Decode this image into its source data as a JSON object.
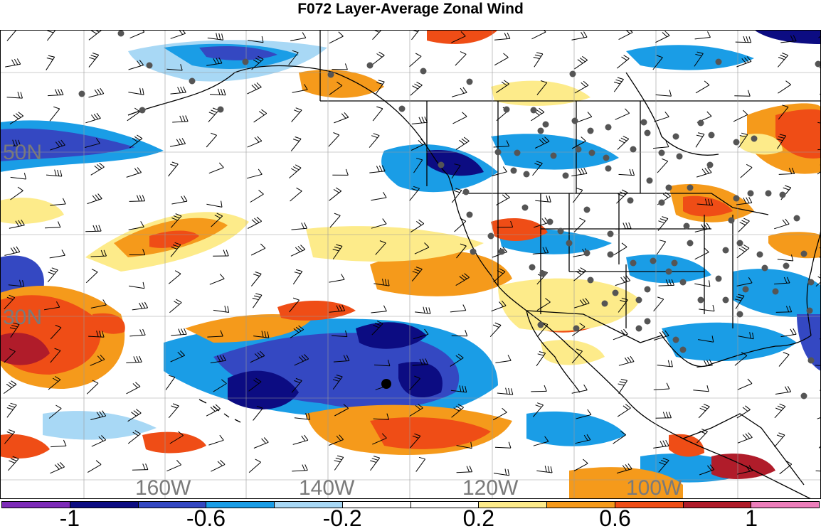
{
  "title": "F072 Layer-Average Zonal Wind",
  "map": {
    "lat_labels": [
      "50N",
      "30N"
    ],
    "lon_labels": [
      "160W",
      "140W",
      "120W",
      "100W"
    ],
    "land_color": "#ffffff",
    "ocean_color": "#ffffff",
    "station_color": "#555555",
    "marker_color": "#000000"
  },
  "colorbar": {
    "colors": [
      "#7d2bb8",
      "#0c0c82",
      "#3448c2",
      "#1a9de6",
      "#a8d8f5",
      "#ffffff",
      "#ffffff",
      "#fdeb8a",
      "#f59a1b",
      "#ef4d16",
      "#b01c2a",
      "#ed7ebb"
    ],
    "ticks": [
      {
        "label": "-1",
        "value": -1.0
      },
      {
        "label": "-0.6",
        "value": -0.6
      },
      {
        "label": "-0.2",
        "value": -0.2
      },
      {
        "label": "0.2",
        "value": 0.2
      },
      {
        "label": "0.6",
        "value": 0.6
      },
      {
        "label": "1",
        "value": 1.0
      }
    ]
  }
}
